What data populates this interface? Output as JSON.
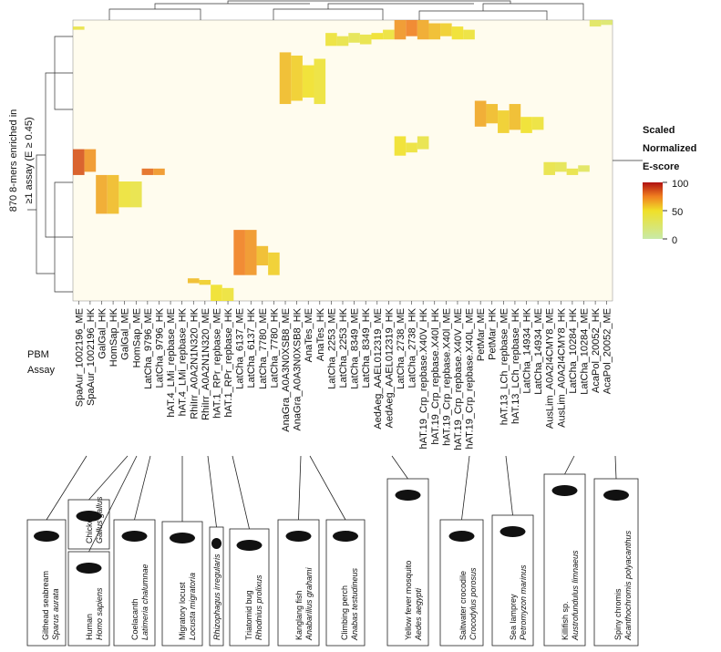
{
  "chart_data": {
    "type": "heatmap",
    "y_label_lines": [
      "870 8-mers enriched in",
      "≥1 assay (E ≥ 0.45)"
    ],
    "x_label_lines": [
      "PBM",
      "Assay"
    ],
    "legend_title_lines": [
      "Scaled",
      "Normalized",
      "E-score"
    ],
    "legend_ticks": [
      0,
      50,
      100
    ],
    "legend_range": [
      0,
      100
    ],
    "row_count": 870,
    "columns": [
      {
        "label": "SpaAur_1002196_ME",
        "color": "#111111"
      },
      {
        "label": "SpaAur_1002196_HK",
        "color": "#111111"
      },
      {
        "label": "GalGal_HK",
        "color": "#111111"
      },
      {
        "label": "HomSap_HK",
        "color": "#111111"
      },
      {
        "label": "GalGal_ME",
        "color": "#111111"
      },
      {
        "label": "HomSap_ME",
        "color": "#111111"
      },
      {
        "label": "LatCha_9796_ME",
        "color": "#2e9a4a"
      },
      {
        "label": "LatCha_9796_HK",
        "color": "#2e9a4a"
      },
      {
        "label": "hAT.4_LMi_repbase_ME",
        "color": "#3a55a8"
      },
      {
        "label": "hAT.4_LMi_repbase_HK",
        "color": "#3a55a8"
      },
      {
        "label": "RhiIrr_A0A2N1N320_HK",
        "color": "#111111"
      },
      {
        "label": "RhiIrr_A0A2N1N320_ME",
        "color": "#111111"
      },
      {
        "label": "hAT.1_RPr_repbase_ME",
        "color": "#3a55a8"
      },
      {
        "label": "hAT.1_RPr_repbase_HK",
        "color": "#3a55a8"
      },
      {
        "label": "LatCha_6137_ME",
        "color": "#2e9a4a"
      },
      {
        "label": "LatCha_6137_HK",
        "color": "#2e9a4a"
      },
      {
        "label": "LatCha_7780_ME",
        "color": "#2e9a4a"
      },
      {
        "label": "LatCha_7780_HK",
        "color": "#2e9a4a"
      },
      {
        "label": "AnaGra_A0A3N0XSB8_ME",
        "color": "#111111"
      },
      {
        "label": "AnaGra_A0A3N0XSB8_HK",
        "color": "#111111"
      },
      {
        "label": "AnaTes_ME",
        "color": "#111111"
      },
      {
        "label": "AnaTes_HK",
        "color": "#111111"
      },
      {
        "label": "LatCha_2253_ME",
        "color": "#2e9a4a"
      },
      {
        "label": "LatCha_2253_HK",
        "color": "#2e9a4a"
      },
      {
        "label": "LatCha_8349_ME",
        "color": "#2e9a4a"
      },
      {
        "label": "LatCha_8349_HK",
        "color": "#2e9a4a"
      },
      {
        "label": "AedAeg_AAEL012319_ME",
        "color": "#111111"
      },
      {
        "label": "AedAeg_AAEL012319_HK",
        "color": "#111111"
      },
      {
        "label": "LatCha_2738_ME",
        "color": "#2e9a4a"
      },
      {
        "label": "LatCha_2738_HK",
        "color": "#2e9a4a"
      },
      {
        "label": "hAT.19_Crp_repbase.X40V_HK",
        "color": "#3a55a8"
      },
      {
        "label": "hAT.19_Crp_repbase.X40l_HK",
        "color": "#3a55a8"
      },
      {
        "label": "hAT.19_Crp_repbase.X40l_ME",
        "color": "#3a55a8"
      },
      {
        "label": "hAT.19_Crp_repbase.X40V_ME",
        "color": "#3a55a8"
      },
      {
        "label": "hAT.19_Crp_repbase.X40L_ME",
        "color": "#3a55a8"
      },
      {
        "label": "PetMar_ME",
        "color": "#111111"
      },
      {
        "label": "PetMar_HK",
        "color": "#111111"
      },
      {
        "label": "hAT.13_LCh_repbase_ME",
        "color": "#3a55a8"
      },
      {
        "label": "hAT.13_LCh_repbase_HK",
        "color": "#3a55a8"
      },
      {
        "label": "LatCha_14934_HK",
        "color": "#2e9a4a"
      },
      {
        "label": "LatCha_14934_ME",
        "color": "#2e9a4a"
      },
      {
        "label": "AusLim_A0A2I4CMY8_ME",
        "color": "#111111"
      },
      {
        "label": "AusLim_A0A2I4CMY8_HK",
        "color": "#111111"
      },
      {
        "label": "LatCha_10284_HK",
        "color": "#2e9a4a"
      },
      {
        "label": "LatCha_10284_ME",
        "color": "#2e9a4a"
      },
      {
        "label": "AcaPol_20052_HK",
        "color": "#111111"
      },
      {
        "label": "AcaPol_20052_ME",
        "color": "#111111"
      }
    ],
    "cells": [
      [
        0,
        400,
        480,
        85
      ],
      [
        1,
        400,
        470,
        70
      ],
      [
        0,
        20,
        30,
        40
      ],
      [
        2,
        480,
        600,
        65
      ],
      [
        3,
        480,
        600,
        60
      ],
      [
        4,
        500,
        580,
        45
      ],
      [
        5,
        500,
        580,
        40
      ],
      [
        6,
        460,
        480,
        80
      ],
      [
        7,
        460,
        480,
        70
      ],
      [
        10,
        800,
        815,
        60
      ],
      [
        11,
        805,
        820,
        55
      ],
      [
        12,
        820,
        870,
        50
      ],
      [
        13,
        830,
        870,
        45
      ],
      [
        14,
        650,
        790,
        75
      ],
      [
        15,
        650,
        790,
        70
      ],
      [
        16,
        700,
        760,
        60
      ],
      [
        17,
        720,
        790,
        55
      ],
      [
        18,
        100,
        260,
        60
      ],
      [
        19,
        110,
        250,
        55
      ],
      [
        20,
        140,
        240,
        50
      ],
      [
        21,
        120,
        260,
        45
      ],
      [
        22,
        40,
        80,
        45
      ],
      [
        23,
        50,
        80,
        40
      ],
      [
        24,
        40,
        70,
        35
      ],
      [
        25,
        45,
        75,
        40
      ],
      [
        26,
        40,
        60,
        50
      ],
      [
        27,
        30,
        60,
        45
      ],
      [
        28,
        0,
        60,
        70
      ],
      [
        29,
        0,
        50,
        75
      ],
      [
        30,
        0,
        60,
        65
      ],
      [
        31,
        10,
        60,
        60
      ],
      [
        32,
        10,
        50,
        55
      ],
      [
        33,
        20,
        60,
        50
      ],
      [
        34,
        30,
        60,
        45
      ],
      [
        28,
        360,
        420,
        50
      ],
      [
        29,
        380,
        410,
        45
      ],
      [
        30,
        360,
        400,
        40
      ],
      [
        35,
        250,
        330,
        65
      ],
      [
        36,
        260,
        320,
        60
      ],
      [
        37,
        280,
        350,
        55
      ],
      [
        38,
        260,
        340,
        60
      ],
      [
        39,
        300,
        350,
        50
      ],
      [
        40,
        300,
        340,
        45
      ],
      [
        41,
        440,
        480,
        40
      ],
      [
        42,
        440,
        470,
        35
      ],
      [
        43,
        460,
        480,
        40
      ],
      [
        44,
        450,
        470,
        30
      ],
      [
        45,
        0,
        20,
        30
      ],
      [
        46,
        0,
        15,
        25
      ]
    ],
    "species": [
      {
        "common": "Gilthead seabream",
        "scientific": "Sparus aurata"
      },
      {
        "common": "Chicken",
        "scientific": "Gallus gallus"
      },
      {
        "common": "Human",
        "scientific": "Homo sapiens"
      },
      {
        "common": "Coelacanth",
        "scientific": "Latimeria chalumnae"
      },
      {
        "common": "Migratory locust",
        "scientific": "Locusta migratoria"
      },
      {
        "scientific": "Rhizophagus irregularis"
      },
      {
        "common": "Triatomid bug",
        "scientific": "Rhodnius prolixus"
      },
      {
        "common": "Kanglang fish",
        "scientific": "Anabarilius grahami"
      },
      {
        "common": "Climbing perch",
        "scientific": "Anabas testudineus"
      },
      {
        "common": "Yellow fever mosquito",
        "scientific": "Aedes aegypti"
      },
      {
        "common": "Saltwater crocodile",
        "scientific": "Crocodylus porosus"
      },
      {
        "common": "Sea lamprey",
        "scientific": "Petromyzon marinus"
      },
      {
        "common": "Killifish sp.",
        "scientific": "Austrofundulus limnaeus"
      },
      {
        "common": "Spiny chromis",
        "scientific": "Acanthochromis polyacanthus"
      }
    ]
  }
}
